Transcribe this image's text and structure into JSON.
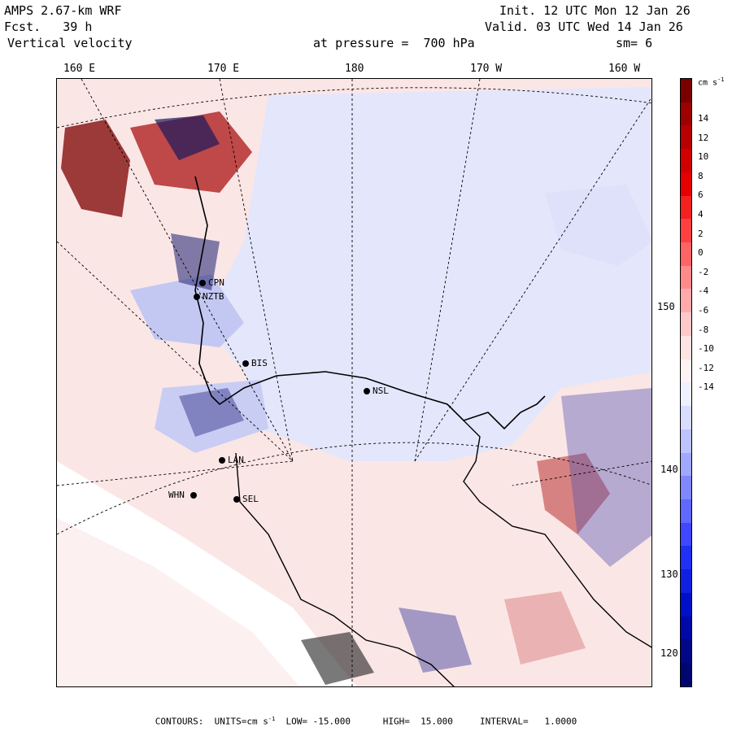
{
  "header": {
    "model": "AMPS 2.67-km WRF",
    "fcst": "Fcst.   39 h",
    "field": "Vertical velocity",
    "init": "Init. 12 UTC Mon 12 Jan 26",
    "valid": "Valid. 03 UTC Wed 14 Jan 26",
    "pressure": "at pressure =  700 hPa",
    "smooth": "sm= 6"
  },
  "lon_labels": [
    "160 E",
    "170 E",
    "180",
    "170 W",
    "160 W"
  ],
  "lat_labels": [
    "150 W",
    "140 W",
    "130 W",
    "120 W"
  ],
  "stations": [
    "CPN",
    "NZTB",
    "BIS",
    "NSL",
    "LAN",
    "WHN",
    "SEL"
  ],
  "colorbar": {
    "unit": "cm s",
    "unit_sup": "-1",
    "ticks": [
      "14",
      "12",
      "10",
      "8",
      "6",
      "4",
      "2",
      "0",
      "-2",
      "-4",
      "-6",
      "-8",
      "-10",
      "-12",
      "-14"
    ],
    "colors_pos": [
      "#7a0000",
      "#9c0000",
      "#b80000",
      "#d10000",
      "#e60000",
      "#f52020",
      "#ff4040",
      "#ff6464",
      "#ff8a8a",
      "#ffaaaa",
      "#ffc8c8",
      "#ffe2e2",
      "#fff2f2"
    ],
    "colors_neg": [
      "#eef0ff",
      "#d8dcff",
      "#bcc3ff",
      "#a0a8ff",
      "#8088ff",
      "#6068ff",
      "#4048ff",
      "#2030f5",
      "#1020e0",
      "#0010c8",
      "#0008a8",
      "#000888",
      "#000670"
    ]
  },
  "footer": {
    "contours_label": "CONTOURS:",
    "units_label": "UNITS=cm s",
    "units_sup": "-1",
    "low": "LOW= -15.000",
    "high": "HIGH=  15.000",
    "interval": "INTERVAL=   1.0000"
  }
}
